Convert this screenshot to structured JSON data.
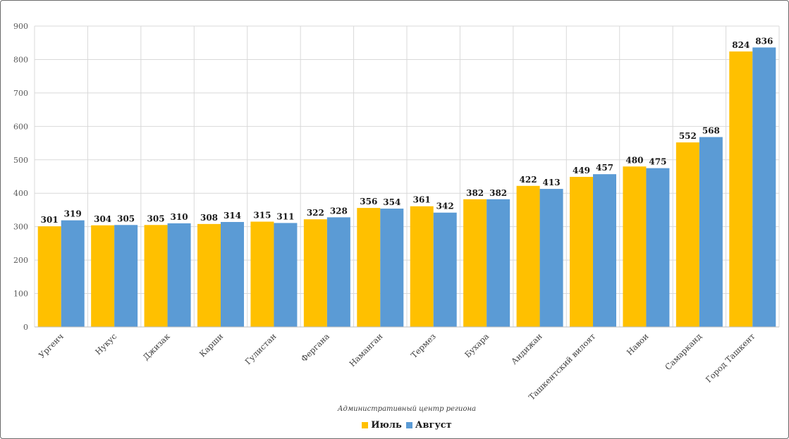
{
  "chart_data": {
    "type": "bar",
    "categories": [
      "Ургенч",
      "Нукус",
      "Джизак",
      "Карши",
      "Гулистан",
      "Фергана",
      "Наманган",
      "Термез",
      "Бухара",
      "Андижан",
      "Ташкентский вилоят",
      "Навои",
      "Самарканд",
      "Город Ташкент"
    ],
    "series": [
      {
        "name": "Июль",
        "color": "#FFC000",
        "values": [
          301,
          304,
          305,
          308,
          315,
          322,
          356,
          361,
          382,
          422,
          449,
          480,
          552,
          824
        ]
      },
      {
        "name": "Август",
        "color": "#5B9BD5",
        "values": [
          319,
          305,
          310,
          314,
          311,
          328,
          354,
          342,
          382,
          413,
          457,
          475,
          568,
          836
        ]
      }
    ],
    "xlabel": "Административный центр региона",
    "ylabel": "",
    "ylim": [
      0,
      900
    ],
    "yticks": [
      0,
      100,
      200,
      300,
      400,
      500,
      600,
      700,
      800,
      900
    ],
    "grid": true,
    "legend_position": "bottom",
    "data_labels": true
  }
}
